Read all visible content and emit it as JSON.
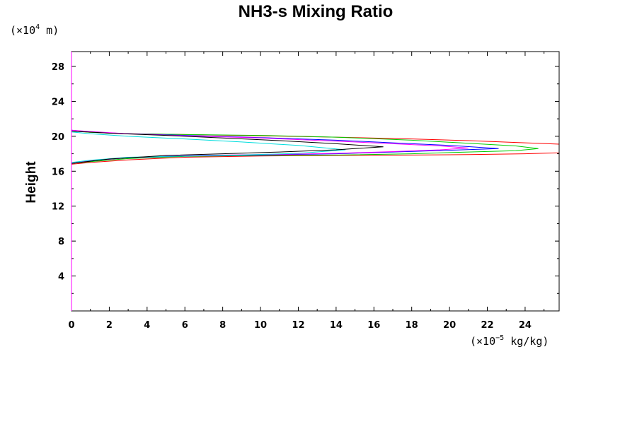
{
  "chart_data": {
    "type": "line",
    "title": "NH3-s Mixing Ratio",
    "xlabel": "",
    "ylabel": "Height",
    "y_unit": {
      "prefix": "(×10",
      "exp": "4",
      "suffix": " m)"
    },
    "x_unit": {
      "prefix": "(×10",
      "exp": "−5",
      "suffix": " kg/kg)"
    },
    "xlim": [
      0,
      25.8
    ],
    "ylim": [
      0,
      29.7
    ],
    "xticks": [
      0,
      2,
      4,
      6,
      8,
      10,
      12,
      14,
      16,
      18,
      20,
      22,
      24
    ],
    "yticks": [
      4,
      8,
      12,
      16,
      20,
      24,
      28
    ],
    "grid": false,
    "series": [
      {
        "name": "series-red",
        "color": "#ff0000",
        "x": [
          0,
          1,
          3,
          6,
          10,
          14,
          18,
          21,
          24,
          25.8,
          25.8,
          24,
          21,
          18,
          14,
          10,
          6,
          3,
          1,
          0
        ],
        "y": [
          20.6,
          20.45,
          20.3,
          20.2,
          20.05,
          19.9,
          19.7,
          19.5,
          19.25,
          19.1,
          18.1,
          18.0,
          17.9,
          17.85,
          17.8,
          17.75,
          17.6,
          17.3,
          17.0,
          16.8
        ]
      },
      {
        "name": "series-green",
        "color": "#00cc00",
        "x": [
          0,
          1,
          3,
          6,
          10,
          14,
          18,
          21,
          23.5,
          24.7,
          23.5,
          21,
          18,
          14,
          10,
          6,
          3,
          1,
          0
        ],
        "y": [
          20.6,
          20.45,
          20.3,
          20.2,
          20.1,
          19.9,
          19.55,
          19.2,
          18.9,
          18.6,
          18.35,
          18.2,
          18.0,
          17.85,
          17.8,
          17.7,
          17.45,
          17.1,
          16.9
        ]
      },
      {
        "name": "series-blue",
        "color": "#0000ff",
        "x": [
          0,
          1,
          3,
          6,
          10,
          14,
          17,
          20,
          22.6,
          20,
          17,
          14,
          10,
          6,
          3,
          1,
          0
        ],
        "y": [
          20.7,
          20.5,
          20.3,
          20.1,
          19.85,
          19.55,
          19.25,
          18.95,
          18.6,
          18.4,
          18.2,
          18.0,
          17.85,
          17.75,
          17.55,
          17.2,
          16.9
        ]
      },
      {
        "name": "series-magenta",
        "color": "#ff00ff",
        "x": [
          0,
          1,
          3,
          6,
          10,
          14,
          17,
          19.5,
          21,
          19.5,
          17,
          14,
          10,
          6,
          3,
          1,
          0
        ],
        "y": [
          20.7,
          20.55,
          20.3,
          20.05,
          19.8,
          19.45,
          19.15,
          18.9,
          18.65,
          18.45,
          18.25,
          18.05,
          17.9,
          17.8,
          17.55,
          17.2,
          16.9
        ]
      },
      {
        "name": "series-cyan",
        "color": "#00dddd",
        "x": [
          0,
          1,
          3,
          6,
          9,
          12,
          14.5,
          12,
          9,
          6,
          3,
          1,
          0
        ],
        "y": [
          20.5,
          20.3,
          20.0,
          19.7,
          19.35,
          18.95,
          18.45,
          18.05,
          17.85,
          17.75,
          17.6,
          17.25,
          17.0
        ]
      },
      {
        "name": "series-black",
        "color": "#000000",
        "x": [
          0,
          2,
          5,
          8,
          11,
          14,
          16.5,
          14,
          11,
          8,
          5,
          2,
          0
        ],
        "y": [
          20.6,
          20.35,
          20.1,
          19.8,
          19.5,
          19.15,
          18.8,
          18.45,
          18.2,
          18.0,
          17.8,
          17.4,
          16.9
        ]
      }
    ]
  }
}
